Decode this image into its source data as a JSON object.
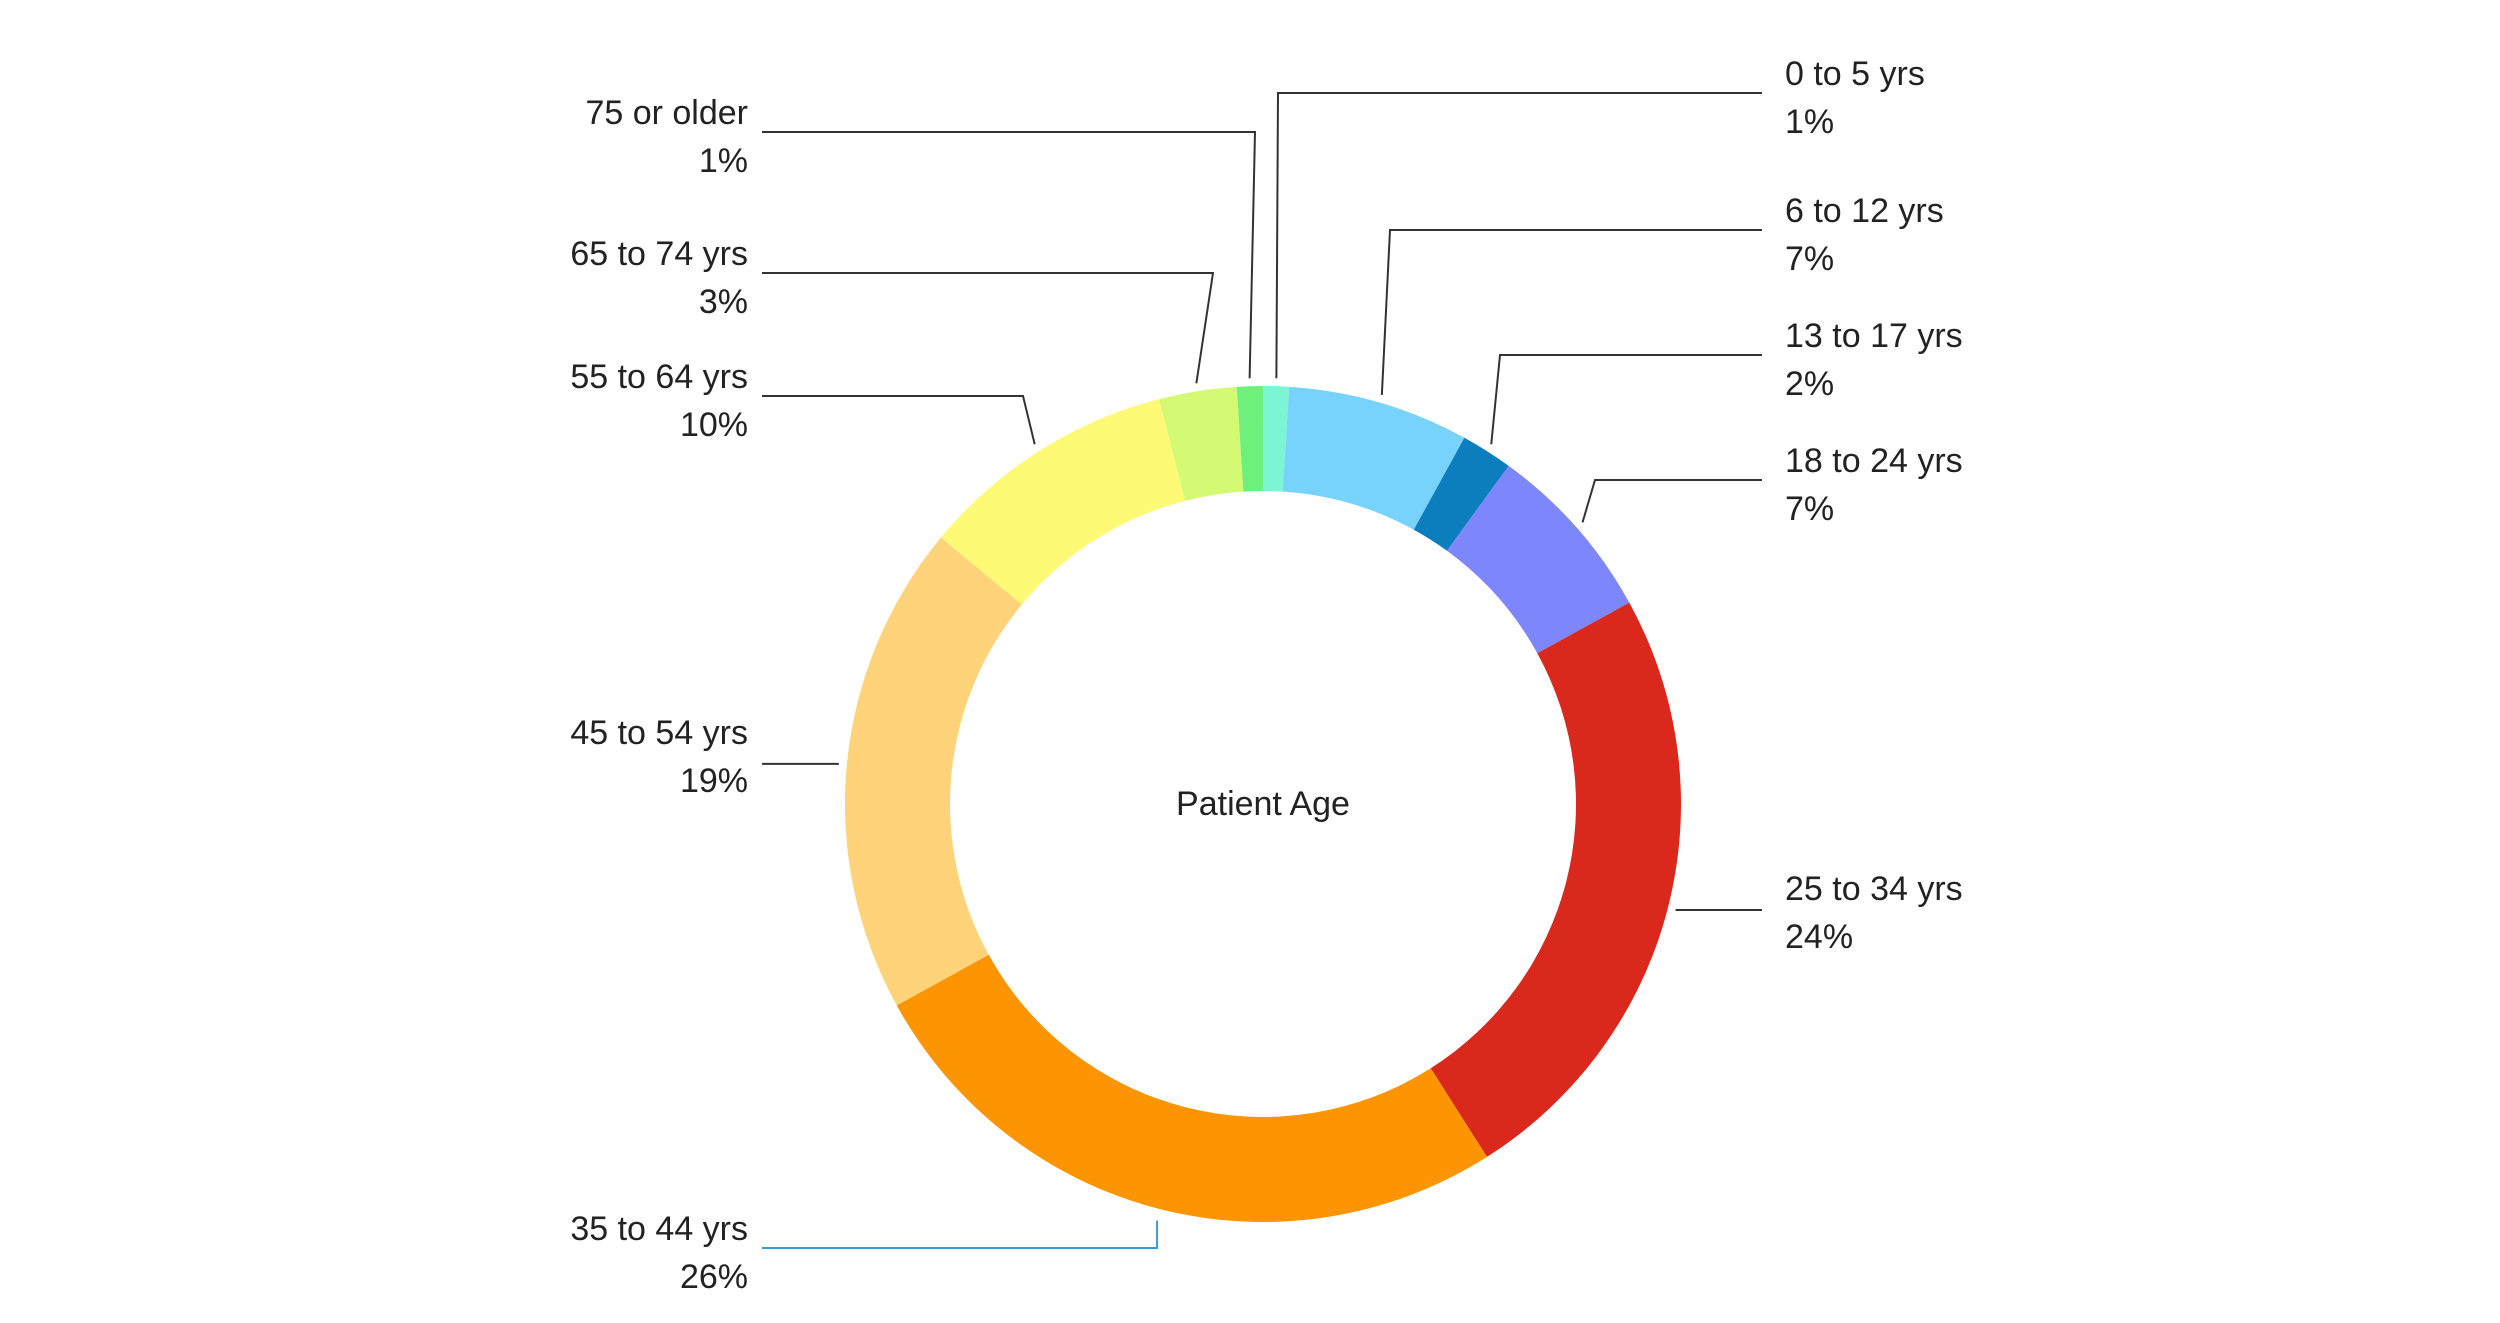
{
  "chart_data": {
    "type": "pie",
    "variant": "donut",
    "center_label": "Patient Age",
    "slices": [
      {
        "label": "0 to 5 yrs",
        "value": 1,
        "value_label": "1%",
        "color": "#7cf5d4"
      },
      {
        "label": "6 to 12 yrs",
        "value": 7,
        "value_label": "7%",
        "color": "#78d3fc"
      },
      {
        "label": "13 to 17 yrs",
        "value": 2,
        "value_label": "2%",
        "color": "#0c7ebd"
      },
      {
        "label": "18 to 24 yrs",
        "value": 7,
        "value_label": "7%",
        "color": "#7d86fb"
      },
      {
        "label": "25 to 34 yrs",
        "value": 24,
        "value_label": "24%",
        "color": "#da291c"
      },
      {
        "label": "35 to 44 yrs",
        "value": 26,
        "value_label": "26%",
        "color": "#fd9502"
      },
      {
        "label": "45 to 54 yrs",
        "value": 19,
        "value_label": "19%",
        "color": "#ffd37a"
      },
      {
        "label": "55 to 64 yrs",
        "value": 10,
        "value_label": "10%",
        "color": "#fffa76"
      },
      {
        "label": "65 to 74 yrs",
        "value": 3,
        "value_label": "3%",
        "color": "#d4fa74"
      },
      {
        "label": "75 or older",
        "value": 1,
        "value_label": "1%",
        "color": "#6ef07d"
      }
    ],
    "highlight_slice": "35 to 44 yrs",
    "highlight_color": "#3a9ad9"
  }
}
